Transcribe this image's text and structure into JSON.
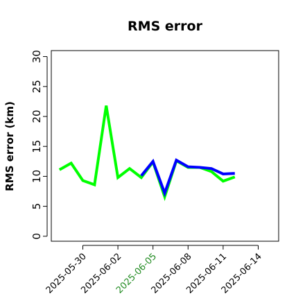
{
  "chart_data": {
    "type": "line",
    "title": "RMS error",
    "xlabel": "",
    "ylabel": "RMS error (km)",
    "ylim": [
      0,
      30
    ],
    "xlim": [
      "2025-05-27",
      "2025-06-16"
    ],
    "yticks": [
      0,
      5,
      10,
      15,
      20,
      25,
      30
    ],
    "xticks": [
      {
        "date": "2025-05-30",
        "label": "2025-05-30",
        "color": "#000000"
      },
      {
        "date": "2025-06-02",
        "label": "2025-06-02",
        "color": "#000000"
      },
      {
        "date": "2025-06-05",
        "label": "2025-06-05",
        "color": "#228B22"
      },
      {
        "date": "2025-06-08",
        "label": "2025-06-08",
        "color": "#000000"
      },
      {
        "date": "2025-06-11",
        "label": "2025-06-11",
        "color": "#000000"
      },
      {
        "date": "2025-06-14",
        "label": "2025-06-14",
        "color": "#000000"
      }
    ],
    "grid": false,
    "series": [
      {
        "color": "#00ff00",
        "points": [
          {
            "x": "2025-05-28",
            "y": 11.1
          },
          {
            "x": "2025-05-29",
            "y": 12.2
          },
          {
            "x": "2025-05-30",
            "y": 9.3
          },
          {
            "x": "2025-05-31",
            "y": 8.6
          },
          {
            "x": "2025-06-01",
            "y": 21.8
          },
          {
            "x": "2025-06-02",
            "y": 9.8
          },
          {
            "x": "2025-06-03",
            "y": 11.3
          },
          {
            "x": "2025-06-04",
            "y": 9.8
          },
          {
            "x": "2025-06-05",
            "y": 12.4
          },
          {
            "x": "2025-06-06",
            "y": 6.6
          },
          {
            "x": "2025-06-07",
            "y": 12.6
          },
          {
            "x": "2025-06-08",
            "y": 11.5
          },
          {
            "x": "2025-06-09",
            "y": 11.5
          },
          {
            "x": "2025-06-10",
            "y": 10.8
          },
          {
            "x": "2025-06-11",
            "y": 9.2
          },
          {
            "x": "2025-06-12",
            "y": 9.9
          }
        ]
      },
      {
        "color": "#0000ff",
        "points": [
          {
            "x": "2025-06-04",
            "y": 10.1
          },
          {
            "x": "2025-06-05",
            "y": 12.5
          },
          {
            "x": "2025-06-06",
            "y": 7.2
          },
          {
            "x": "2025-06-07",
            "y": 12.7
          },
          {
            "x": "2025-06-08",
            "y": 11.6
          },
          {
            "x": "2025-06-09",
            "y": 11.5
          },
          {
            "x": "2025-06-10",
            "y": 11.3
          },
          {
            "x": "2025-06-11",
            "y": 10.4
          },
          {
            "x": "2025-06-12",
            "y": 10.5
          }
        ]
      }
    ]
  }
}
